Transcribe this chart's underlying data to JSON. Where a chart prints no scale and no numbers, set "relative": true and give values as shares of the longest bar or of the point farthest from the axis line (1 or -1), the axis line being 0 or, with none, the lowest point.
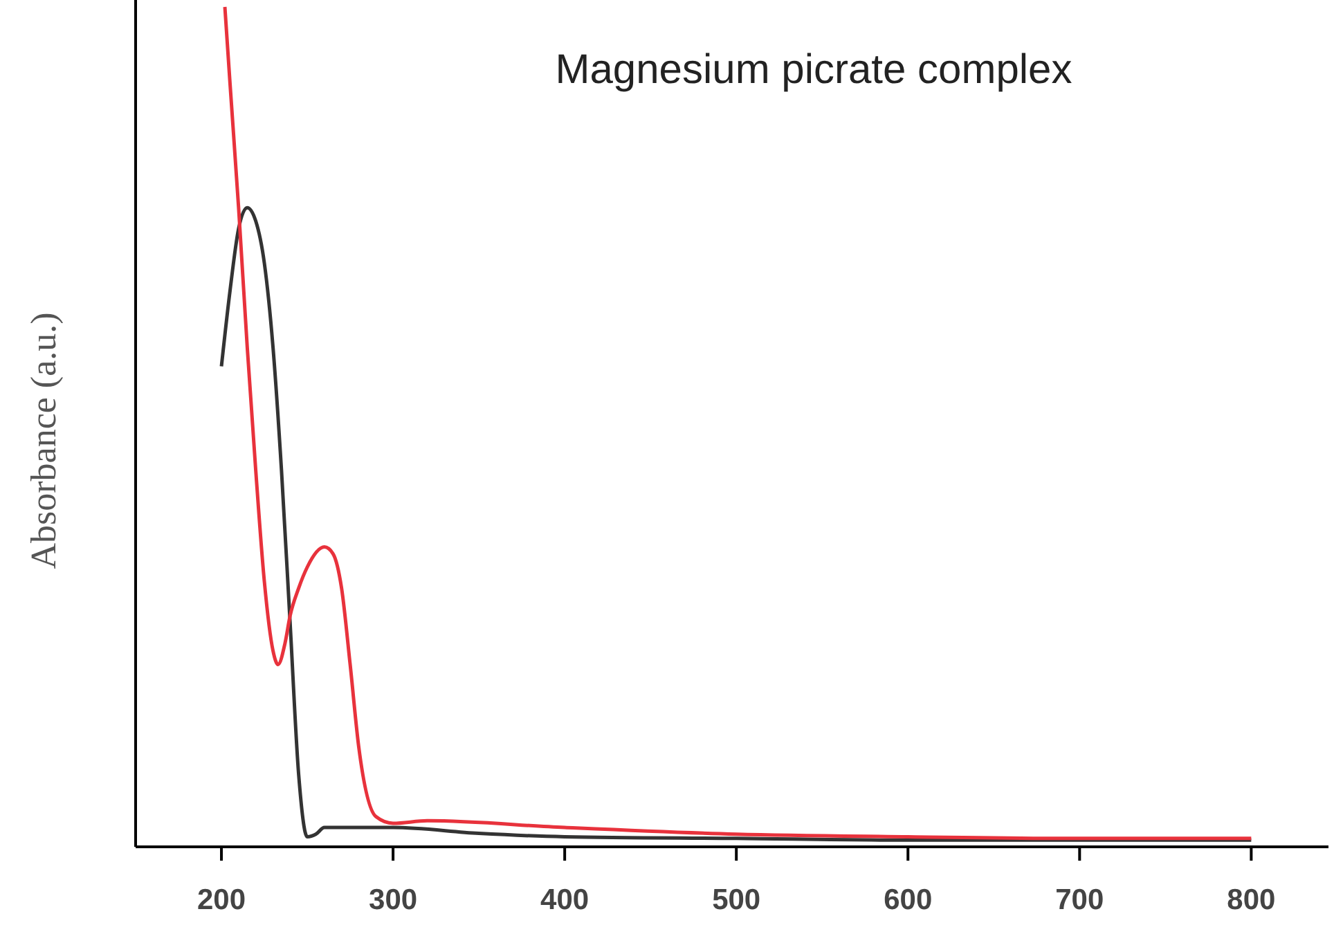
{
  "chart_data": {
    "type": "line",
    "title": "Magnesium picrate complex",
    "ylabel": "Absorbance (a.u.)",
    "relative": true,
    "xlim": [
      150,
      845
    ],
    "xticks": [
      200,
      300,
      400,
      500,
      600,
      700,
      800
    ],
    "grid": false,
    "line_style": "solid",
    "series": [
      {
        "color": "#333333",
        "x": [
          200,
          205,
          210,
          215,
          220,
          225,
          230,
          235,
          240,
          245,
          250,
          255,
          260,
          300,
          350,
          400,
          500,
          600,
          800
        ],
        "values": [
          0.572,
          0.662,
          0.736,
          0.761,
          0.745,
          0.695,
          0.596,
          0.448,
          0.267,
          0.086,
          0.012,
          0.015,
          0.023,
          0.023,
          0.016,
          0.012,
          0.01,
          0.008,
          0.008
        ]
      },
      {
        "color": "#e8323c",
        "x": [
          202,
          205,
          210,
          215,
          220,
          225,
          230,
          233,
          237,
          240,
          245,
          250,
          260,
          265,
          270,
          275,
          280,
          290,
          300,
          320,
          400,
          500,
          600,
          700,
          800
        ],
        "values": [
          1,
          0.909,
          0.761,
          0.596,
          0.448,
          0.316,
          0.234,
          0.217,
          0.242,
          0.275,
          0.308,
          0.333,
          0.357,
          0.349,
          0.308,
          0.217,
          0.119,
          0.036,
          0.028,
          0.031,
          0.023,
          0.015,
          0.012,
          0.01,
          0.01
        ]
      }
    ]
  }
}
